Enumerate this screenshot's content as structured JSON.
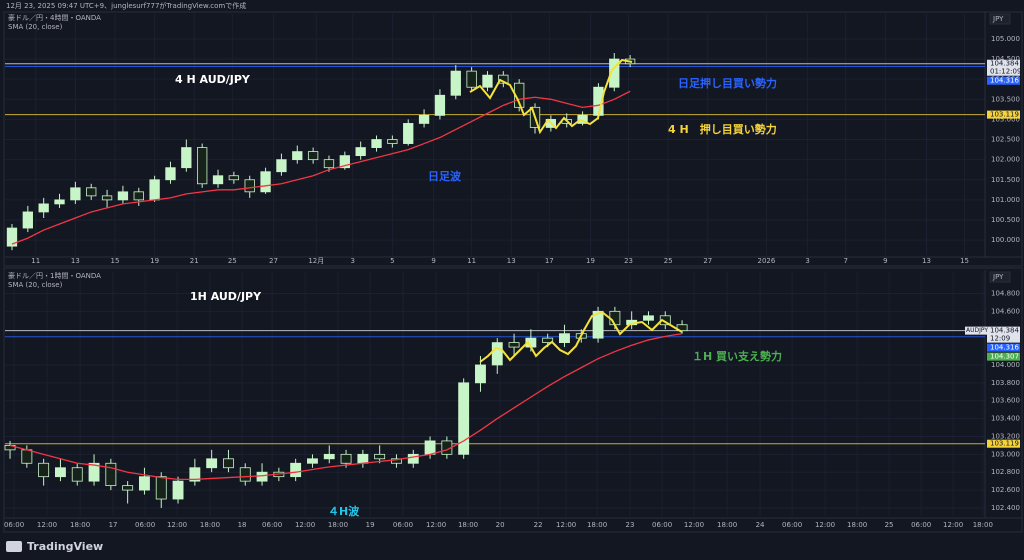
{
  "header": "12月 23, 2025 09:47 UTC+9、junglesurf777がTradingView.comで作成",
  "footer": "TradingView",
  "chart_data": [
    {
      "type": "candlestick",
      "symbol": "豪ドル／円・4時間・OANDA",
      "currency": "JPY",
      "annotations": [
        {
          "text": "4 H AUD/JPY",
          "color": "#ffffff"
        },
        {
          "text": "日足押し目買い勢力",
          "color": "#2962ff"
        },
        {
          "text": "4 H　押し目買い勢力",
          "color": "#f5d33b"
        },
        {
          "text": "日足波",
          "color": "#2962ff"
        }
      ],
      "xlim": [
        -0.44,
        61.39
      ],
      "xticks": [
        {
          "value": 1.5,
          "label": "11"
        },
        {
          "value": 4.0,
          "label": "13"
        },
        {
          "value": 6.5,
          "label": "15"
        },
        {
          "value": 9.0,
          "label": "19"
        },
        {
          "value": 11.5,
          "label": "21"
        },
        {
          "value": 13.9,
          "label": "25"
        },
        {
          "value": 16.5,
          "label": "27"
        },
        {
          "value": 19.2,
          "label": "12月"
        },
        {
          "value": 21.5,
          "label": "3"
        },
        {
          "value": 24.0,
          "label": "5"
        },
        {
          "value": 26.6,
          "label": "9"
        },
        {
          "value": 29.0,
          "label": "11"
        },
        {
          "value": 31.5,
          "label": "13"
        },
        {
          "value": 33.9,
          "label": "17"
        },
        {
          "value": 36.5,
          "label": "19"
        },
        {
          "value": 38.9,
          "label": "23"
        },
        {
          "value": 41.4,
          "label": "25"
        },
        {
          "value": 43.9,
          "label": "27"
        },
        {
          "value": 47.6,
          "label": "2026"
        },
        {
          "value": 50.2,
          "label": "3"
        },
        {
          "value": 52.6,
          "label": "7"
        },
        {
          "value": 55.1,
          "label": "9"
        },
        {
          "value": 57.7,
          "label": "13"
        },
        {
          "value": 60.1,
          "label": "15"
        }
      ],
      "ylim": [
        99.63,
        105.62
      ],
      "yticks": [
        {
          "value": 100,
          "label": "100.000"
        },
        {
          "value": 100.5,
          "label": "100.500"
        },
        {
          "value": 101,
          "label": "101.000"
        },
        {
          "value": 101.5,
          "label": "101.500"
        },
        {
          "value": 102,
          "label": "102.000"
        },
        {
          "value": 102.5,
          "label": "102.500"
        },
        {
          "value": 103,
          "label": "103.000"
        },
        {
          "value": 103.5,
          "label": "103.500"
        },
        {
          "value": 104,
          "label": "104.000"
        },
        {
          "value": 104.5,
          "label": "104.500"
        },
        {
          "value": 105,
          "label": "105.000"
        }
      ],
      "up_color": "#c8f5c8",
      "down_color": "#16221a",
      "open": [
        99.85,
        100.3,
        100.7,
        100.9,
        101.0,
        101.3,
        101.1,
        101.0,
        101.2,
        101.0,
        101.5,
        101.8,
        102.3,
        101.4,
        101.6,
        101.5,
        101.2,
        101.7,
        102.0,
        102.2,
        102.0,
        101.8,
        102.1,
        102.3,
        102.5,
        102.4,
        102.9,
        103.1,
        103.6,
        104.2,
        103.8,
        104.1,
        103.9,
        103.3,
        102.8,
        103.0,
        102.9,
        103.1,
        103.8,
        104.5
      ],
      "high": [
        100.4,
        100.85,
        101.05,
        101.15,
        101.45,
        101.4,
        101.25,
        101.35,
        101.3,
        101.6,
        101.95,
        102.5,
        102.4,
        101.75,
        101.7,
        101.6,
        101.8,
        102.15,
        102.35,
        102.3,
        102.1,
        102.2,
        102.45,
        102.6,
        102.6,
        103.0,
        103.25,
        103.75,
        104.35,
        104.3,
        104.2,
        104.2,
        104.0,
        103.4,
        103.1,
        103.15,
        103.2,
        103.9,
        104.65,
        104.6
      ],
      "low": [
        99.75,
        100.2,
        100.55,
        100.8,
        100.9,
        101.0,
        100.8,
        100.9,
        100.85,
        100.95,
        101.4,
        101.7,
        101.3,
        101.3,
        101.4,
        101.05,
        101.15,
        101.6,
        101.9,
        101.9,
        101.7,
        101.75,
        102.0,
        102.2,
        102.3,
        102.35,
        102.8,
        103.0,
        103.5,
        103.7,
        103.7,
        103.8,
        103.2,
        102.65,
        102.7,
        102.8,
        102.85,
        103.0,
        103.7,
        104.3
      ],
      "close": [
        100.3,
        100.7,
        100.9,
        101.0,
        101.3,
        101.1,
        101.0,
        101.2,
        101.0,
        101.5,
        101.8,
        102.3,
        101.4,
        101.6,
        101.5,
        101.2,
        101.7,
        102.0,
        102.2,
        102.0,
        101.8,
        102.1,
        102.3,
        102.5,
        102.4,
        102.9,
        103.1,
        103.6,
        104.2,
        103.8,
        104.1,
        103.9,
        103.3,
        102.8,
        103.0,
        102.9,
        103.1,
        103.8,
        104.5,
        104.384
      ],
      "sma": {
        "name": "SMA (20, close)",
        "color": "#f23645",
        "values": [
          99.9,
          100.05,
          100.25,
          100.4,
          100.55,
          100.7,
          100.8,
          100.9,
          100.95,
          101.0,
          101.05,
          101.15,
          101.2,
          101.25,
          101.25,
          101.3,
          101.35,
          101.4,
          101.5,
          101.6,
          101.75,
          101.85,
          101.95,
          102.05,
          102.15,
          102.25,
          102.4,
          102.55,
          102.75,
          102.95,
          103.15,
          103.35,
          103.5,
          103.55,
          103.5,
          103.4,
          103.3,
          103.35,
          103.5,
          103.7
        ]
      },
      "levels": [
        {
          "value": 104.384,
          "label": "104.384",
          "sublabel": "01:12:09",
          "color": "#e0e3eb",
          "line": true
        },
        {
          "value": 104.316,
          "label": "104.316",
          "color": "#2962ff",
          "line": true
        },
        {
          "value": 103.119,
          "label": "103.119",
          "color": "#f5d33b",
          "line": true
        }
      ]
    },
    {
      "type": "candlestick",
      "symbol": "豪ドル／円・1時間・OANDA",
      "currency": "JPY",
      "annotations": [
        {
          "text": "1H AUD/JPY",
          "color": "#ffffff"
        },
        {
          "text": "１H 買い支え勢力",
          "color": "#4caf50"
        },
        {
          "text": "４H波",
          "color": "#22c7e8"
        }
      ],
      "xlim": [
        -0.3,
        58.03
      ],
      "xticks": [
        {
          "value": 0.24,
          "label": "06:00"
        },
        {
          "value": 2.2,
          "label": "12:00"
        },
        {
          "value": 4.17,
          "label": "18:00"
        },
        {
          "value": 6.13,
          "label": "17"
        },
        {
          "value": 8.04,
          "label": "06:00"
        },
        {
          "value": 9.94,
          "label": "12:00"
        },
        {
          "value": 11.9,
          "label": "18:00"
        },
        {
          "value": 13.81,
          "label": "18"
        },
        {
          "value": 15.6,
          "label": "06:00"
        },
        {
          "value": 17.56,
          "label": "12:00"
        },
        {
          "value": 19.52,
          "label": "18:00"
        },
        {
          "value": 21.43,
          "label": "19"
        },
        {
          "value": 23.39,
          "label": "06:00"
        },
        {
          "value": 25.36,
          "label": "12:00"
        },
        {
          "value": 27.26,
          "label": "18:00"
        },
        {
          "value": 29.17,
          "label": "20"
        },
        {
          "value": 31.43,
          "label": "22"
        },
        {
          "value": 33.1,
          "label": "12:00"
        },
        {
          "value": 34.94,
          "label": "18:00"
        },
        {
          "value": 36.9,
          "label": "23"
        },
        {
          "value": 38.81,
          "label": "06:00"
        },
        {
          "value": 40.71,
          "label": "12:00"
        },
        {
          "value": 42.68,
          "label": "18:00"
        },
        {
          "value": 44.64,
          "label": "24"
        },
        {
          "value": 46.55,
          "label": "06:00"
        },
        {
          "value": 48.51,
          "label": "12:00"
        },
        {
          "value": 50.42,
          "label": "18:00"
        },
        {
          "value": 52.32,
          "label": "25"
        },
        {
          "value": 54.23,
          "label": "06:00"
        },
        {
          "value": 56.13,
          "label": "12:00"
        },
        {
          "value": 57.9,
          "label": "18:00"
        }
      ],
      "ylim": [
        102.31,
        105.04
      ],
      "yticks": [
        {
          "value": 102.4,
          "label": "102.400"
        },
        {
          "value": 102.6,
          "label": "102.600"
        },
        {
          "value": 102.8,
          "label": "102.800"
        },
        {
          "value": 103.0,
          "label": "103.000"
        },
        {
          "value": 103.2,
          "label": "103.200"
        },
        {
          "value": 103.4,
          "label": "103.400"
        },
        {
          "value": 103.6,
          "label": "103.600"
        },
        {
          "value": 103.8,
          "label": "103.800"
        },
        {
          "value": 104.0,
          "label": "104.000"
        },
        {
          "value": 104.6,
          "label": "104.600"
        },
        {
          "value": 104.8,
          "label": "104.800"
        }
      ],
      "up_color": "#c8f5c8",
      "down_color": "#16221a",
      "open": [
        103.1,
        103.05,
        102.9,
        102.75,
        102.85,
        102.7,
        102.9,
        102.65,
        102.6,
        102.75,
        102.5,
        102.7,
        102.85,
        102.95,
        102.85,
        102.7,
        102.8,
        102.75,
        102.9,
        102.95,
        103.0,
        102.9,
        103.0,
        102.95,
        102.9,
        103.0,
        103.15,
        103.0,
        103.8,
        104.0,
        104.25,
        104.2,
        104.3,
        104.25,
        104.35,
        104.3,
        104.6,
        104.45,
        104.5,
        104.55,
        104.45
      ],
      "high": [
        103.15,
        103.1,
        102.95,
        102.95,
        102.9,
        103.0,
        102.95,
        102.7,
        102.85,
        102.8,
        102.75,
        102.95,
        103.05,
        103.05,
        102.9,
        102.9,
        102.85,
        102.95,
        103.0,
        103.1,
        103.05,
        103.05,
        103.1,
        103.0,
        103.05,
        103.2,
        103.2,
        103.85,
        104.1,
        104.3,
        104.35,
        104.4,
        104.35,
        104.45,
        104.4,
        104.65,
        104.65,
        104.6,
        104.6,
        104.6,
        104.5
      ],
      "low": [
        102.95,
        102.85,
        102.65,
        102.7,
        102.65,
        102.65,
        102.6,
        102.45,
        102.55,
        102.4,
        102.45,
        102.65,
        102.8,
        102.8,
        102.65,
        102.65,
        102.7,
        102.7,
        102.85,
        102.9,
        102.85,
        102.85,
        102.9,
        102.85,
        102.85,
        102.95,
        102.95,
        102.95,
        103.7,
        103.9,
        104.1,
        104.15,
        104.2,
        104.2,
        104.25,
        104.25,
        104.4,
        104.4,
        104.45,
        104.4,
        104.35
      ],
      "close": [
        103.05,
        102.9,
        102.75,
        102.85,
        102.7,
        102.9,
        102.65,
        102.6,
        102.75,
        102.5,
        102.7,
        102.85,
        102.95,
        102.85,
        102.7,
        102.8,
        102.75,
        102.9,
        102.95,
        103.0,
        102.9,
        103.0,
        102.95,
        102.9,
        103.0,
        103.15,
        103.0,
        103.8,
        104.0,
        104.25,
        104.2,
        104.3,
        104.25,
        104.35,
        104.3,
        104.6,
        104.45,
        104.5,
        104.55,
        104.45,
        104.384
      ],
      "sma": {
        "name": "SMA (20, close)",
        "color": "#f23645",
        "values": [
          103.1,
          103.05,
          103.0,
          102.95,
          102.9,
          102.88,
          102.85,
          102.8,
          102.77,
          102.74,
          102.72,
          102.72,
          102.73,
          102.74,
          102.75,
          102.76,
          102.78,
          102.8,
          102.83,
          102.86,
          102.88,
          102.9,
          102.92,
          102.94,
          102.97,
          103.0,
          103.05,
          103.15,
          103.27,
          103.4,
          103.52,
          103.64,
          103.76,
          103.87,
          103.97,
          104.07,
          104.15,
          104.22,
          104.28,
          104.32,
          104.35
        ]
      },
      "levels": [
        {
          "value": 104.384,
          "label": "104.384",
          "name": "AUDJPY",
          "sublabel": "12:09",
          "color": "#e0e3eb",
          "line": true
        },
        {
          "value": 104.316,
          "label": "104.316",
          "color": "#2962ff",
          "line": true
        },
        {
          "value": 104.307,
          "label": "104.307",
          "color": "#4caf50",
          "line": false
        },
        {
          "value": 103.119,
          "label": "103.119",
          "color": "#f5d33b",
          "line": true
        }
      ]
    }
  ]
}
